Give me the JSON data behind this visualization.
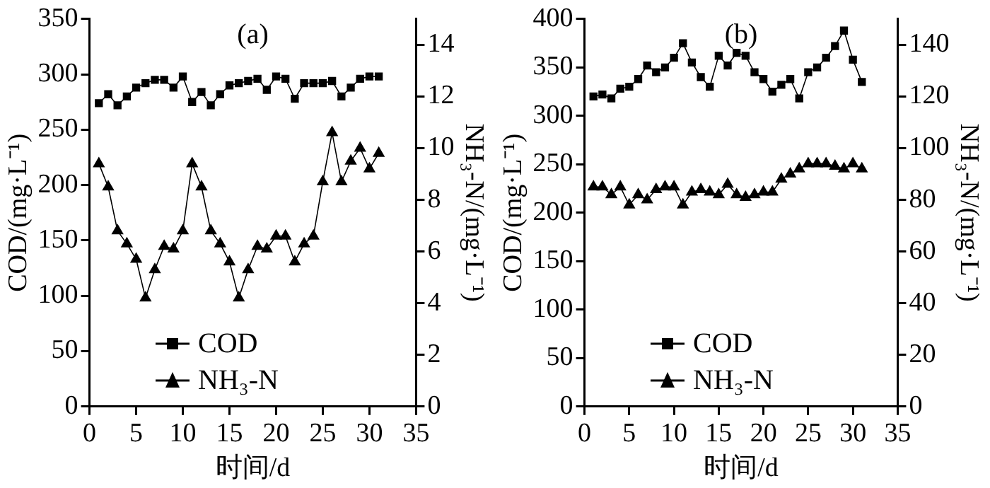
{
  "chart_data": [
    {
      "type": "line",
      "title": "(a)",
      "xlabel": "时间/d",
      "ylabel": "COD/(mg·L⁻¹)",
      "y2label": "NH₃-N/(mg·L⁻¹)",
      "x": [
        1,
        2,
        3,
        4,
        5,
        6,
        7,
        8,
        9,
        10,
        11,
        12,
        13,
        14,
        15,
        16,
        17,
        18,
        19,
        20,
        21,
        22,
        23,
        24,
        25,
        26,
        27,
        28,
        29,
        30,
        31
      ],
      "xlim": [
        0,
        35
      ],
      "xticks": [
        0,
        5,
        10,
        15,
        20,
        25,
        30,
        35
      ],
      "ylim": [
        0,
        350
      ],
      "yticks": [
        0,
        50,
        100,
        150,
        200,
        250,
        300,
        350
      ],
      "y2lim": [
        0,
        15
      ],
      "y2ticks": [
        0,
        2,
        4,
        6,
        8,
        10,
        12,
        14
      ],
      "grid": false,
      "legend": "bottom",
      "line_style": "solid",
      "series": [
        {
          "name": "COD",
          "color": "#000000",
          "marker": "square",
          "values": [
            274,
            282,
            272,
            280,
            288,
            292,
            295,
            295,
            288,
            298,
            275,
            284,
            272,
            282,
            290,
            292,
            294,
            296,
            286,
            298,
            296,
            278,
            292,
            292,
            292,
            294,
            280,
            288,
            296,
            298,
            298
          ]
        },
        {
          "name": "NH₃-N",
          "color": "#000000",
          "marker": "triangle",
          "axis": "y2",
          "values": [
            9.4,
            8.5,
            6.8,
            6.3,
            5.7,
            4.2,
            5.3,
            6.2,
            6.1,
            6.8,
            9.4,
            8.5,
            6.8,
            6.3,
            5.6,
            4.2,
            5.3,
            6.2,
            6.1,
            6.6,
            6.6,
            5.6,
            6.3,
            6.6,
            8.7,
            10.6,
            8.7,
            9.5,
            10,
            9.2,
            9.8
          ]
        }
      ]
    },
    {
      "type": "line",
      "title": "(b)",
      "xlabel": "时间/d",
      "ylabel": "COD/(mg·L⁻¹)",
      "y2label": "NH₃-N/(mg·L⁻¹)",
      "x": [
        1,
        2,
        3,
        4,
        5,
        6,
        7,
        8,
        9,
        10,
        11,
        12,
        13,
        14,
        15,
        16,
        17,
        18,
        19,
        20,
        21,
        22,
        23,
        24,
        25,
        26,
        27,
        28,
        29,
        30,
        31
      ],
      "xlim": [
        0,
        35
      ],
      "xticks": [
        0,
        5,
        10,
        15,
        20,
        25,
        30,
        35
      ],
      "ylim": [
        0,
        400
      ],
      "yticks": [
        0,
        50,
        100,
        150,
        200,
        250,
        300,
        350,
        400
      ],
      "y2lim": [
        0,
        150
      ],
      "y2ticks": [
        0,
        20,
        40,
        60,
        80,
        100,
        120,
        140
      ],
      "grid": false,
      "legend": "bottom",
      "line_style": "solid",
      "series": [
        {
          "name": "COD",
          "color": "#000000",
          "marker": "square",
          "values": [
            320,
            322,
            318,
            328,
            330,
            338,
            352,
            345,
            350,
            360,
            375,
            355,
            340,
            330,
            362,
            352,
            365,
            362,
            345,
            338,
            325,
            332,
            338,
            318,
            345,
            350,
            360,
            372,
            388,
            358,
            335
          ]
        },
        {
          "name": "NH₃-N",
          "color": "#000000",
          "marker": "triangle",
          "axis": "y2",
          "values": [
            85,
            85,
            82,
            85,
            78,
            82,
            80,
            84,
            85,
            85,
            78,
            83,
            84,
            83,
            82,
            86,
            82,
            81,
            82,
            83,
            83,
            88,
            90,
            92,
            94,
            94,
            94,
            93,
            92,
            94,
            92
          ]
        }
      ]
    }
  ]
}
